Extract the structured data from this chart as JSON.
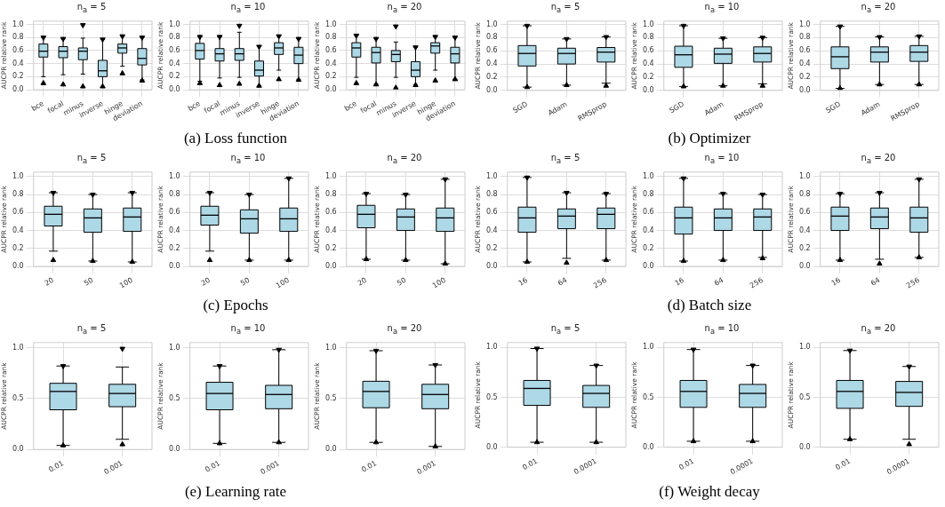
{
  "chart_data": [
    {
      "type": "box",
      "title": "n$_{a}$ = 5",
      "ylabel": "AUCPR relative rank",
      "categories": [
        "bce",
        "focal",
        "minus",
        "inverse",
        "hinge",
        "deviation"
      ],
      "ylim": [
        0,
        1.05
      ],
      "yticks": [
        {
          "value": 0,
          "label": "0.0"
        },
        {
          "value": 0.2,
          "label": "0.2"
        },
        {
          "value": 0.4,
          "label": "0.4"
        },
        {
          "value": 0.6,
          "label": "0.6"
        },
        {
          "value": 0.8,
          "label": "0.8"
        },
        {
          "value": 1,
          "label": "1.0"
        }
      ],
      "grid": true,
      "series": [
        {
          "color": "#add8e6",
          "boxes": [
            {
              "low": 0.2,
              "q1": 0.5,
              "median": 0.59,
              "q3": 0.7,
              "high": 0.8,
              "outliers": [
                0.1,
                0.8
              ]
            },
            {
              "low": 0.23,
              "q1": 0.49,
              "median": 0.59,
              "q3": 0.66,
              "high": 0.78,
              "outliers": [
                0.08,
                0.78
              ]
            },
            {
              "low": 0.24,
              "q1": 0.46,
              "median": 0.59,
              "q3": 0.64,
              "high": 0.79,
              "outliers": [
                0.05,
                0.99
              ]
            },
            {
              "low": 0.05,
              "q1": 0.2,
              "median": 0.29,
              "q3": 0.45,
              "high": 0.77,
              "outliers": [
                0.05,
                0.77
              ]
            },
            {
              "low": 0.36,
              "q1": 0.56,
              "median": 0.64,
              "q3": 0.7,
              "high": 0.82,
              "outliers": [
                0.25,
                0.82
              ]
            },
            {
              "low": 0.15,
              "q1": 0.38,
              "median": 0.48,
              "q3": 0.63,
              "high": 0.8,
              "outliers": [
                0.14,
                0.8
              ]
            }
          ]
        }
      ]
    },
    {
      "type": "box",
      "title": "n$_{a}$ = 10",
      "ylabel": "AUCPR relative rank",
      "categories": [
        "bce",
        "focal",
        "minus",
        "inverse",
        "hinge",
        "deviation"
      ],
      "ylim": [
        0,
        1.05
      ],
      "yticks": [
        {
          "value": 0,
          "label": "0.0"
        },
        {
          "value": 0.2,
          "label": "0.2"
        },
        {
          "value": 0.4,
          "label": "0.4"
        },
        {
          "value": 0.6,
          "label": "0.6"
        },
        {
          "value": 0.8,
          "label": "0.8"
        },
        {
          "value": 1,
          "label": "1.0"
        }
      ],
      "grid": true,
      "annotations": [
        "(a) Loss function"
      ],
      "series": [
        {
          "color": "#add8e6",
          "boxes": [
            {
              "low": 0.13,
              "q1": 0.47,
              "median": 0.6,
              "q3": 0.71,
              "high": 0.81,
              "outliers": [
                0.1,
                0.81
              ]
            },
            {
              "low": 0.18,
              "q1": 0.44,
              "median": 0.55,
              "q3": 0.63,
              "high": 0.81,
              "outliers": [
                0.07,
                0.81
              ]
            },
            {
              "low": 0.19,
              "q1": 0.45,
              "median": 0.55,
              "q3": 0.63,
              "high": 0.88,
              "outliers": [
                0.09,
                0.98
              ]
            },
            {
              "low": 0.06,
              "q1": 0.21,
              "median": 0.3,
              "q3": 0.44,
              "high": 0.66,
              "outliers": [
                0.06,
                0.66
              ]
            },
            {
              "low": 0.3,
              "q1": 0.54,
              "median": 0.64,
              "q3": 0.72,
              "high": 0.82,
              "outliers": [
                0.16,
                0.82
              ]
            },
            {
              "low": 0.16,
              "q1": 0.4,
              "median": 0.53,
              "q3": 0.65,
              "high": 0.78,
              "outliers": [
                0.15,
                0.78
              ]
            }
          ]
        }
      ]
    },
    {
      "type": "box",
      "title": "n$_{a}$ = 20",
      "ylabel": "AUCPR relative rank",
      "categories": [
        "bce",
        "focal",
        "minus",
        "inverse",
        "hinge",
        "deviation"
      ],
      "ylim": [
        0,
        1.05
      ],
      "yticks": [
        {
          "value": 0,
          "label": "0.0"
        },
        {
          "value": 0.2,
          "label": "0.2"
        },
        {
          "value": 0.4,
          "label": "0.4"
        },
        {
          "value": 0.6,
          "label": "0.6"
        },
        {
          "value": 0.8,
          "label": "0.8"
        },
        {
          "value": 1,
          "label": "1.0"
        }
      ],
      "grid": true,
      "series": [
        {
          "color": "#add8e6",
          "boxes": [
            {
              "low": 0.19,
              "q1": 0.5,
              "median": 0.64,
              "q3": 0.72,
              "high": 0.83,
              "outliers": [
                0.1,
                0.83
              ]
            },
            {
              "low": 0.09,
              "q1": 0.41,
              "median": 0.57,
              "q3": 0.65,
              "high": 0.78,
              "outliers": [
                0.08,
                0.78
              ]
            },
            {
              "low": 0.19,
              "q1": 0.43,
              "median": 0.54,
              "q3": 0.6,
              "high": 0.73,
              "outliers": [
                0.03,
                0.97
              ]
            },
            {
              "low": 0.08,
              "q1": 0.2,
              "median": 0.3,
              "q3": 0.43,
              "high": 0.65,
              "outliers": [
                0.07,
                0.65
              ]
            },
            {
              "low": 0.3,
              "q1": 0.56,
              "median": 0.67,
              "q3": 0.72,
              "high": 0.81,
              "outliers": [
                0.14,
                0.81
              ]
            },
            {
              "low": 0.16,
              "q1": 0.41,
              "median": 0.55,
              "q3": 0.65,
              "high": 0.8,
              "outliers": [
                0.16,
                0.8
              ]
            }
          ]
        }
      ]
    },
    {
      "type": "box",
      "title": "n$_{a}$ = 5",
      "ylabel": "AUCPR relative rank",
      "categories": [
        "SGD",
        "Adam",
        "RMSprop"
      ],
      "ylim": [
        0,
        1.05
      ],
      "yticks": [
        {
          "value": 0,
          "label": "0.0"
        },
        {
          "value": 0.2,
          "label": "0.2"
        },
        {
          "value": 0.4,
          "label": "0.4"
        },
        {
          "value": 0.6,
          "label": "0.6"
        },
        {
          "value": 0.8,
          "label": "0.8"
        },
        {
          "value": 1,
          "label": "1.0"
        }
      ],
      "grid": true,
      "series": [
        {
          "color": "#add8e6",
          "boxes": [
            {
              "low": 0.05,
              "q1": 0.37,
              "median": 0.56,
              "q3": 0.68,
              "high": 0.98,
              "outliers": [
                0.05,
                0.98
              ]
            },
            {
              "low": 0.08,
              "q1": 0.4,
              "median": 0.56,
              "q3": 0.64,
              "high": 0.78,
              "outliers": [
                0.08,
                0.78
              ]
            },
            {
              "low": 0.11,
              "q1": 0.43,
              "median": 0.58,
              "q3": 0.65,
              "high": 0.81,
              "outliers": [
                0.07,
                0.81
              ]
            }
          ]
        }
      ]
    },
    {
      "type": "box",
      "title": "n$_{a}$ = 10",
      "ylabel": "AUCPR relative rank",
      "categories": [
        "SGD",
        "Adam",
        "RMSprop"
      ],
      "ylim": [
        0,
        1.05
      ],
      "yticks": [
        {
          "value": 0,
          "label": "0.0"
        },
        {
          "value": 0.2,
          "label": "0.2"
        },
        {
          "value": 0.4,
          "label": "0.4"
        },
        {
          "value": 0.6,
          "label": "0.6"
        },
        {
          "value": 0.8,
          "label": "0.8"
        },
        {
          "value": 1,
          "label": "1.0"
        }
      ],
      "grid": true,
      "annotations": [
        "(b) Optimizer"
      ],
      "series": [
        {
          "color": "#add8e6",
          "boxes": [
            {
              "low": 0.06,
              "q1": 0.35,
              "median": 0.54,
              "q3": 0.67,
              "high": 0.98,
              "outliers": [
                0.06,
                0.98
              ]
            },
            {
              "low": 0.07,
              "q1": 0.41,
              "median": 0.55,
              "q3": 0.64,
              "high": 0.79,
              "outliers": [
                0.07,
                0.79
              ]
            },
            {
              "low": 0.1,
              "q1": 0.43,
              "median": 0.56,
              "q3": 0.66,
              "high": 0.8,
              "outliers": [
                0.07,
                0.8
              ]
            }
          ]
        }
      ]
    },
    {
      "type": "box",
      "title": "n$_{a}$ = 20",
      "ylabel": "AUCPR relative rank",
      "categories": [
        "SGD",
        "Adam",
        "RMSprop"
      ],
      "ylim": [
        0,
        1.05
      ],
      "yticks": [
        {
          "value": 0,
          "label": "0.0"
        },
        {
          "value": 0.2,
          "label": "0.2"
        },
        {
          "value": 0.4,
          "label": "0.4"
        },
        {
          "value": 0.6,
          "label": "0.6"
        },
        {
          "value": 0.8,
          "label": "0.8"
        },
        {
          "value": 1,
          "label": "1.0"
        }
      ],
      "grid": true,
      "series": [
        {
          "color": "#add8e6",
          "boxes": [
            {
              "low": 0.03,
              "q1": 0.33,
              "median": 0.51,
              "q3": 0.66,
              "high": 0.97,
              "outliers": [
                0.03,
                0.97
              ]
            },
            {
              "low": 0.09,
              "q1": 0.43,
              "median": 0.58,
              "q3": 0.66,
              "high": 0.81,
              "outliers": [
                0.09,
                0.81
              ]
            },
            {
              "low": 0.09,
              "q1": 0.44,
              "median": 0.58,
              "q3": 0.68,
              "high": 0.82,
              "outliers": [
                0.09,
                0.82
              ]
            }
          ]
        }
      ]
    },
    {
      "type": "box",
      "title": "n$_{a}$ = 5",
      "ylabel": "AUCPR relative rank",
      "categories": [
        "20",
        "50",
        "100"
      ],
      "ylim": [
        0,
        1.05
      ],
      "yticks": [
        {
          "value": 0,
          "label": "0.0"
        },
        {
          "value": 0.2,
          "label": "0.2"
        },
        {
          "value": 0.4,
          "label": "0.4"
        },
        {
          "value": 0.6,
          "label": "0.6"
        },
        {
          "value": 0.8,
          "label": "0.8"
        },
        {
          "value": 1,
          "label": "1.0"
        }
      ],
      "grid": true,
      "series": [
        {
          "color": "#add8e6",
          "boxes": [
            {
              "low": 0.17,
              "q1": 0.45,
              "median": 0.58,
              "q3": 0.67,
              "high": 0.82,
              "outliers": [
                0.07,
                0.82
              ]
            },
            {
              "low": 0.06,
              "q1": 0.38,
              "median": 0.54,
              "q3": 0.64,
              "high": 0.8,
              "outliers": [
                0.06,
                0.8
              ]
            },
            {
              "low": 0.05,
              "q1": 0.39,
              "median": 0.55,
              "q3": 0.65,
              "high": 0.82,
              "outliers": [
                0.05,
                0.82
              ]
            }
          ]
        }
      ]
    },
    {
      "type": "box",
      "title": "n$_{a}$ = 10",
      "ylabel": "AUCPR relative rank",
      "categories": [
        "20",
        "50",
        "100"
      ],
      "ylim": [
        0,
        1.05
      ],
      "yticks": [
        {
          "value": 0,
          "label": "0.0"
        },
        {
          "value": 0.2,
          "label": "0.2"
        },
        {
          "value": 0.4,
          "label": "0.4"
        },
        {
          "value": 0.6,
          "label": "0.6"
        },
        {
          "value": 0.8,
          "label": "0.8"
        },
        {
          "value": 1,
          "label": "1.0"
        }
      ],
      "grid": true,
      "annotations": [
        "(c) Epochs"
      ],
      "series": [
        {
          "color": "#add8e6",
          "boxes": [
            {
              "low": 0.17,
              "q1": 0.46,
              "median": 0.57,
              "q3": 0.67,
              "high": 0.82,
              "outliers": [
                0.07,
                0.82
              ]
            },
            {
              "low": 0.07,
              "q1": 0.37,
              "median": 0.53,
              "q3": 0.63,
              "high": 0.8,
              "outliers": [
                0.07,
                0.8
              ]
            },
            {
              "low": 0.07,
              "q1": 0.39,
              "median": 0.53,
              "q3": 0.65,
              "high": 0.98,
              "outliers": [
                0.07,
                0.98
              ]
            }
          ]
        }
      ]
    },
    {
      "type": "box",
      "title": "n$_{a}$ = 20",
      "ylabel": "AUCPR relative rank",
      "categories": [
        "20",
        "50",
        "100"
      ],
      "ylim": [
        0,
        1.05
      ],
      "yticks": [
        {
          "value": 0,
          "label": "0.0"
        },
        {
          "value": 0.2,
          "label": "0.2"
        },
        {
          "value": 0.4,
          "label": "0.4"
        },
        {
          "value": 0.6,
          "label": "0.6"
        },
        {
          "value": 0.8,
          "label": "0.8"
        },
        {
          "value": 1,
          "label": "1.0"
        }
      ],
      "grid": true,
      "series": [
        {
          "color": "#add8e6",
          "boxes": [
            {
              "low": 0.08,
              "q1": 0.43,
              "median": 0.58,
              "q3": 0.68,
              "high": 0.81,
              "outliers": [
                0.08,
                0.81
              ]
            },
            {
              "low": 0.07,
              "q1": 0.4,
              "median": 0.55,
              "q3": 0.64,
              "high": 0.8,
              "outliers": [
                0.07,
                0.8
              ]
            },
            {
              "low": 0.03,
              "q1": 0.39,
              "median": 0.54,
              "q3": 0.65,
              "high": 0.97,
              "outliers": [
                0.03,
                0.97
              ]
            }
          ]
        }
      ]
    },
    {
      "type": "box",
      "title": "n$_{a}$ = 5",
      "ylabel": "AUCPR relative rank",
      "categories": [
        "16",
        "64",
        "256"
      ],
      "ylim": [
        0,
        1.05
      ],
      "yticks": [
        {
          "value": 0,
          "label": "0.0"
        },
        {
          "value": 0.2,
          "label": "0.2"
        },
        {
          "value": 0.4,
          "label": "0.4"
        },
        {
          "value": 0.6,
          "label": "0.6"
        },
        {
          "value": 0.8,
          "label": "0.8"
        },
        {
          "value": 1,
          "label": "1.0"
        }
      ],
      "grid": true,
      "series": [
        {
          "color": "#add8e6",
          "boxes": [
            {
              "low": 0.05,
              "q1": 0.38,
              "median": 0.54,
              "q3": 0.66,
              "high": 0.99,
              "outliers": [
                0.05,
                0.99
              ]
            },
            {
              "low": 0.09,
              "q1": 0.42,
              "median": 0.56,
              "q3": 0.64,
              "high": 0.82,
              "outliers": [
                0.04,
                0.82
              ]
            },
            {
              "low": 0.07,
              "q1": 0.42,
              "median": 0.58,
              "q3": 0.65,
              "high": 0.81,
              "outliers": [
                0.07,
                0.81
              ]
            }
          ]
        }
      ]
    },
    {
      "type": "box",
      "title": "n$_{a}$ = 10",
      "ylabel": "AUCPR relative rank",
      "categories": [
        "16",
        "64",
        "256"
      ],
      "ylim": [
        0,
        1.05
      ],
      "yticks": [
        {
          "value": 0,
          "label": "0.0"
        },
        {
          "value": 0.2,
          "label": "0.2"
        },
        {
          "value": 0.4,
          "label": "0.4"
        },
        {
          "value": 0.6,
          "label": "0.6"
        },
        {
          "value": 0.8,
          "label": "0.8"
        },
        {
          "value": 1,
          "label": "1.0"
        }
      ],
      "grid": true,
      "annotations": [
        "(d) Batch size"
      ],
      "series": [
        {
          "color": "#add8e6",
          "boxes": [
            {
              "low": 0.06,
              "q1": 0.36,
              "median": 0.54,
              "q3": 0.66,
              "high": 0.98,
              "outliers": [
                0.06,
                0.98
              ]
            },
            {
              "low": 0.07,
              "q1": 0.4,
              "median": 0.54,
              "q3": 0.64,
              "high": 0.81,
              "outliers": [
                0.07,
                0.81
              ]
            },
            {
              "low": 0.1,
              "q1": 0.4,
              "median": 0.55,
              "q3": 0.64,
              "high": 0.8,
              "outliers": [
                0.09,
                0.8
              ]
            }
          ]
        }
      ]
    },
    {
      "type": "box",
      "title": "n$_{a}$ = 20",
      "ylabel": "AUCPR relative rank",
      "categories": [
        "16",
        "64",
        "256"
      ],
      "ylim": [
        0,
        1.05
      ],
      "yticks": [
        {
          "value": 0,
          "label": "0.0"
        },
        {
          "value": 0.2,
          "label": "0.2"
        },
        {
          "value": 0.4,
          "label": "0.4"
        },
        {
          "value": 0.6,
          "label": "0.6"
        },
        {
          "value": 0.8,
          "label": "0.8"
        },
        {
          "value": 1,
          "label": "1.0"
        }
      ],
      "grid": true,
      "series": [
        {
          "color": "#add8e6",
          "boxes": [
            {
              "low": 0.07,
              "q1": 0.4,
              "median": 0.56,
              "q3": 0.66,
              "high": 0.81,
              "outliers": [
                0.07,
                0.81
              ]
            },
            {
              "low": 0.08,
              "q1": 0.42,
              "median": 0.55,
              "q3": 0.65,
              "high": 0.82,
              "outliers": [
                0.03,
                0.82
              ]
            },
            {
              "low": 0.1,
              "q1": 0.38,
              "median": 0.54,
              "q3": 0.66,
              "high": 0.97,
              "outliers": [
                0.1,
                0.97
              ]
            }
          ]
        }
      ]
    },
    {
      "type": "box",
      "title": "n$_{a}$ = 5",
      "ylabel": "AUCPR relative rank",
      "categories": [
        "0.01",
        "0.001"
      ],
      "ylim": [
        0,
        1.05
      ],
      "yticks": [
        {
          "value": 0,
          "label": "0.0"
        },
        {
          "value": 0.5,
          "label": "0.5"
        },
        {
          "value": 1,
          "label": "1.0"
        }
      ],
      "grid": true,
      "series": [
        {
          "color": "#add8e6",
          "boxes": [
            {
              "low": 0.04,
              "q1": 0.39,
              "median": 0.57,
              "q3": 0.65,
              "high": 0.82,
              "outliers": [
                0.04,
                0.82
              ]
            },
            {
              "low": 0.1,
              "q1": 0.42,
              "median": 0.55,
              "q3": 0.64,
              "high": 0.81,
              "outliers": [
                0.05,
                0.99
              ]
            }
          ]
        }
      ]
    },
    {
      "type": "box",
      "title": "n$_{a}$ = 10",
      "ylabel": "AUCPR relative rank",
      "categories": [
        "0.01",
        "0.001"
      ],
      "ylim": [
        0,
        1.05
      ],
      "yticks": [
        {
          "value": 0,
          "label": "0.0"
        },
        {
          "value": 0.5,
          "label": "0.5"
        },
        {
          "value": 1,
          "label": "1.0"
        }
      ],
      "grid": true,
      "annotations": [
        "(e) Learning rate"
      ],
      "series": [
        {
          "color": "#add8e6",
          "boxes": [
            {
              "low": 0.06,
              "q1": 0.39,
              "median": 0.55,
              "q3": 0.66,
              "high": 0.82,
              "outliers": [
                0.06,
                0.82
              ]
            },
            {
              "low": 0.07,
              "q1": 0.4,
              "median": 0.54,
              "q3": 0.63,
              "high": 0.98,
              "outliers": [
                0.07,
                0.98
              ]
            }
          ]
        }
      ]
    },
    {
      "type": "box",
      "title": "n$_{a}$ = 20",
      "ylabel": "AUCPR relative rank",
      "categories": [
        "0.01",
        "0.001"
      ],
      "ylim": [
        0,
        1.05
      ],
      "yticks": [
        {
          "value": 0,
          "label": "0.0"
        },
        {
          "value": 0.5,
          "label": "0.5"
        },
        {
          "value": 1,
          "label": "1.0"
        }
      ],
      "grid": true,
      "series": [
        {
          "color": "#add8e6",
          "boxes": [
            {
              "low": 0.07,
              "q1": 0.41,
              "median": 0.57,
              "q3": 0.67,
              "high": 0.97,
              "outliers": [
                0.07,
                0.97
              ]
            },
            {
              "low": 0.03,
              "q1": 0.4,
              "median": 0.54,
              "q3": 0.64,
              "high": 0.83,
              "outliers": [
                0.03,
                0.83
              ]
            }
          ]
        }
      ]
    },
    {
      "type": "box",
      "title": "n$_{a}$ = 5",
      "ylabel": "AUCPR relative rank",
      "categories": [
        "0.01",
        "0.0001"
      ],
      "ylim": [
        0,
        1.05
      ],
      "yticks": [
        {
          "value": 0,
          "label": "0.0"
        },
        {
          "value": 0.5,
          "label": "0.5"
        },
        {
          "value": 1,
          "label": "1.0"
        }
      ],
      "grid": true,
      "series": [
        {
          "color": "#add8e6",
          "boxes": [
            {
              "low": 0.05,
              "q1": 0.42,
              "median": 0.59,
              "q3": 0.67,
              "high": 0.99,
              "outliers": [
                0.05,
                0.99
              ]
            },
            {
              "low": 0.05,
              "q1": 0.4,
              "median": 0.54,
              "q3": 0.62,
              "high": 0.82,
              "outliers": [
                0.05,
                0.82
              ]
            }
          ]
        }
      ]
    },
    {
      "type": "box",
      "title": "n$_{a}$ = 10",
      "ylabel": "AUCPR relative rank",
      "categories": [
        "0.01",
        "0.0001"
      ],
      "ylim": [
        0,
        1.05
      ],
      "yticks": [
        {
          "value": 0,
          "label": "0.0"
        },
        {
          "value": 0.5,
          "label": "0.5"
        },
        {
          "value": 1,
          "label": "1.0"
        }
      ],
      "grid": true,
      "annotations": [
        "(f) Weight decay"
      ],
      "series": [
        {
          "color": "#add8e6",
          "boxes": [
            {
              "low": 0.06,
              "q1": 0.4,
              "median": 0.56,
              "q3": 0.67,
              "high": 0.98,
              "outliers": [
                0.06,
                0.98
              ]
            },
            {
              "low": 0.06,
              "q1": 0.4,
              "median": 0.54,
              "q3": 0.63,
              "high": 0.82,
              "outliers": [
                0.06,
                0.82
              ]
            }
          ]
        }
      ]
    },
    {
      "type": "box",
      "title": "n$_{a}$ = 20",
      "ylabel": "AUCPR relative rank",
      "categories": [
        "0.01",
        "0.0001"
      ],
      "ylim": [
        0,
        1.05
      ],
      "yticks": [
        {
          "value": 0,
          "label": "0.0"
        },
        {
          "value": 0.5,
          "label": "0.5"
        },
        {
          "value": 1,
          "label": "1.0"
        }
      ],
      "grid": true,
      "series": [
        {
          "color": "#add8e6",
          "boxes": [
            {
              "low": 0.08,
              "q1": 0.39,
              "median": 0.56,
              "q3": 0.67,
              "high": 0.97,
              "outliers": [
                0.08,
                0.97
              ]
            },
            {
              "low": 0.08,
              "q1": 0.41,
              "median": 0.55,
              "q3": 0.66,
              "high": 0.81,
              "outliers": [
                0.03,
                0.81
              ]
            }
          ]
        }
      ]
    }
  ]
}
